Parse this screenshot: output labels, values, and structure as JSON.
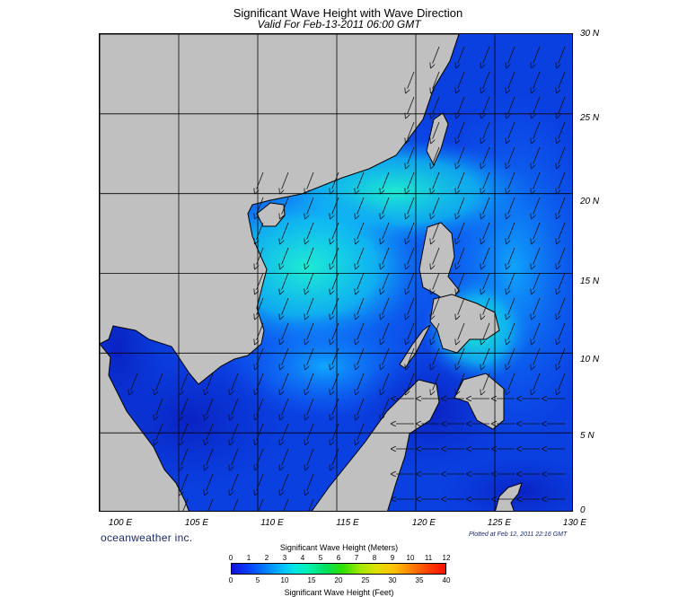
{
  "header": {
    "title": "Significant Wave Height with Wave Direction",
    "subtitle": "Valid For Feb-13-2011 06:00 GMT"
  },
  "map": {
    "lat_labels": [
      "30 N",
      "25 N",
      "20 N",
      "15 N",
      "10 N",
      "5 N",
      "0"
    ],
    "lon_labels": [
      "100 E",
      "105 E",
      "110 E",
      "115 E",
      "120 E",
      "125 E",
      "130 E"
    ],
    "lon_range": [
      100,
      130
    ],
    "lat_range": [
      0,
      30
    ],
    "land_color": "#c0c0c0",
    "ocean_color": "#0a3fe0",
    "dominant_wave_direction": "from northeast"
  },
  "footer": {
    "brand": "oceanweather inc.",
    "plotted": "Plotted at Feb 12, 2011 22:16 GMT"
  },
  "legend": {
    "title_meters": "Significant Wave Height (Meters)",
    "title_feet": "Significant Wave Height (Feet)",
    "meters_ticks": [
      "0",
      "1",
      "2",
      "3",
      "4",
      "5",
      "6",
      "7",
      "8",
      "9",
      "10",
      "11",
      "12"
    ],
    "feet_ticks": [
      "0",
      "5",
      "10",
      "15",
      "20",
      "25",
      "30",
      "35",
      "40"
    ]
  }
}
